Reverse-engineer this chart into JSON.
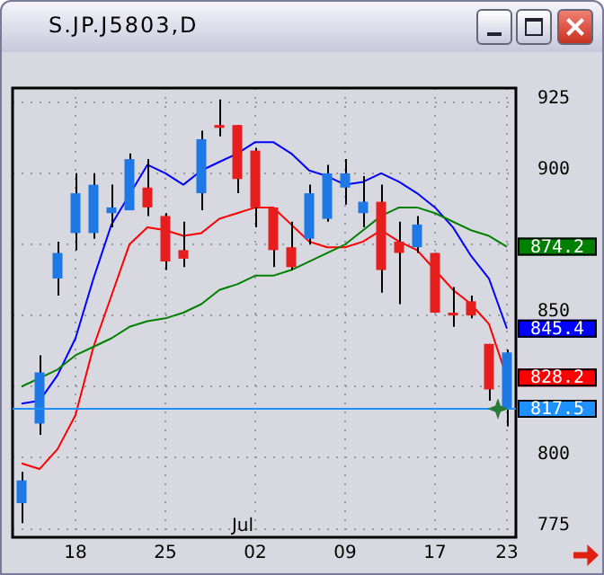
{
  "chart_data": {
    "type": "candlestick",
    "title": "S.JP.J5803,D",
    "categories": [
      null,
      null,
      null,
      "18",
      null,
      null,
      null,
      null,
      "25",
      null,
      null,
      null,
      null,
      "02",
      null,
      null,
      null,
      null,
      "09",
      null,
      null,
      null,
      null,
      "17",
      null,
      null,
      null,
      "23"
    ],
    "ohlc": [
      [
        792,
        795,
        777,
        784
      ],
      [
        830,
        836,
        808,
        812
      ],
      [
        872,
        876,
        857,
        863
      ],
      [
        893,
        900,
        873,
        879
      ],
      [
        896,
        900,
        877,
        879
      ],
      [
        888,
        896,
        881,
        886
      ],
      [
        905,
        907,
        887,
        887
      ],
      [
        888,
        905,
        885,
        895
      ],
      [
        869,
        886,
        866,
        885
      ],
      [
        870,
        883,
        867,
        873
      ],
      [
        912,
        915,
        887,
        893
      ],
      [
        916,
        926,
        913,
        917
      ],
      [
        898,
        917,
        893,
        917
      ],
      [
        888,
        909,
        881,
        908
      ],
      [
        873,
        888,
        867,
        888
      ],
      [
        867,
        883,
        866,
        874
      ],
      [
        893,
        896,
        875,
        877
      ],
      [
        900,
        903,
        883,
        884
      ],
      [
        900,
        905,
        889,
        895
      ],
      [
        890,
        899,
        881,
        886
      ],
      [
        866,
        896,
        858,
        890
      ],
      [
        872,
        883,
        854,
        876
      ],
      [
        882,
        885,
        872,
        874
      ],
      [
        851,
        872,
        851,
        872
      ],
      [
        850,
        860,
        846,
        851
      ],
      [
        850,
        857,
        849,
        855
      ],
      [
        824,
        840,
        820,
        840
      ],
      [
        837,
        838,
        811,
        817.5
      ]
    ],
    "colors": [
      "#1e78e6",
      "#1e78e6",
      "#1e78e6",
      "#1e78e6",
      "#1e78e6",
      "#1e78e6",
      "#1e78e6",
      "#e61e1e",
      "#e61e1e",
      "#e61e1e",
      "#1e78e6",
      "#e61e1e",
      "#e61e1e",
      "#e61e1e",
      "#e61e1e",
      "#e61e1e",
      "#1e78e6",
      "#1e78e6",
      "#1e78e6",
      "#1e78e6",
      "#e61e1e",
      "#e61e1e",
      "#1e78e6",
      "#e61e1e",
      "#e61e1e",
      "#e61e1e",
      "#e61e1e",
      "#1e78e6"
    ],
    "series": [
      {
        "type": "line",
        "color": "#008000",
        "values": [
          825,
          828,
          831,
          836,
          839,
          842,
          846,
          848,
          849,
          851,
          854,
          859,
          861,
          864,
          864,
          866,
          869,
          872,
          875,
          880,
          885,
          888,
          888,
          886,
          883,
          880,
          878,
          874.2
        ],
        "value_labels": [
          null,
          null,
          null,
          null,
          null,
          null,
          null,
          null,
          null,
          null,
          null,
          null,
          null,
          null,
          null,
          null,
          null,
          null,
          null,
          null,
          null,
          null,
          null,
          null,
          null,
          null,
          null,
          "874.2"
        ]
      },
      {
        "type": "line",
        "color": "#0000ff",
        "values": [
          819,
          820,
          829,
          842,
          863,
          882,
          null,
          903,
          900,
          896,
          901,
          904,
          907,
          911,
          911,
          907,
          901,
          899,
          896,
          897,
          900,
          897,
          893,
          888,
          881,
          871,
          863,
          845.4
        ],
        "value_labels": [
          null,
          null,
          null,
          null,
          null,
          null,
          null,
          null,
          null,
          null,
          null,
          null,
          null,
          null,
          null,
          null,
          null,
          null,
          null,
          null,
          null,
          null,
          null,
          null,
          null,
          null,
          null,
          "845.4"
        ]
      },
      {
        "type": "line",
        "color": "#ff0000",
        "values": [
          798,
          796,
          803,
          815,
          839,
          857,
          875,
          881,
          880,
          878,
          879,
          884,
          886,
          888,
          888,
          882,
          876,
          874,
          874,
          876,
          880,
          876,
          873,
          866,
          859,
          854,
          847,
          828.2
        ],
        "value_labels": [
          null,
          null,
          null,
          null,
          null,
          null,
          null,
          null,
          null,
          null,
          null,
          null,
          null,
          null,
          null,
          null,
          null,
          null,
          null,
          null,
          null,
          null,
          null,
          null,
          null,
          null,
          null,
          "828.2"
        ]
      }
    ],
    "ylim": [
      772,
      930
    ],
    "yticks": [
      775,
      800,
      {
        "value": 825,
        "label": null
      },
      850,
      {
        "value": 875,
        "label": null
      },
      900,
      925
    ],
    "grid": true,
    "ref_lines": [
      {
        "axis": "y",
        "value": 817.5,
        "label": "817.5",
        "color": "#1e90ff"
      }
    ],
    "annotations": [
      "Jul"
    ]
  }
}
